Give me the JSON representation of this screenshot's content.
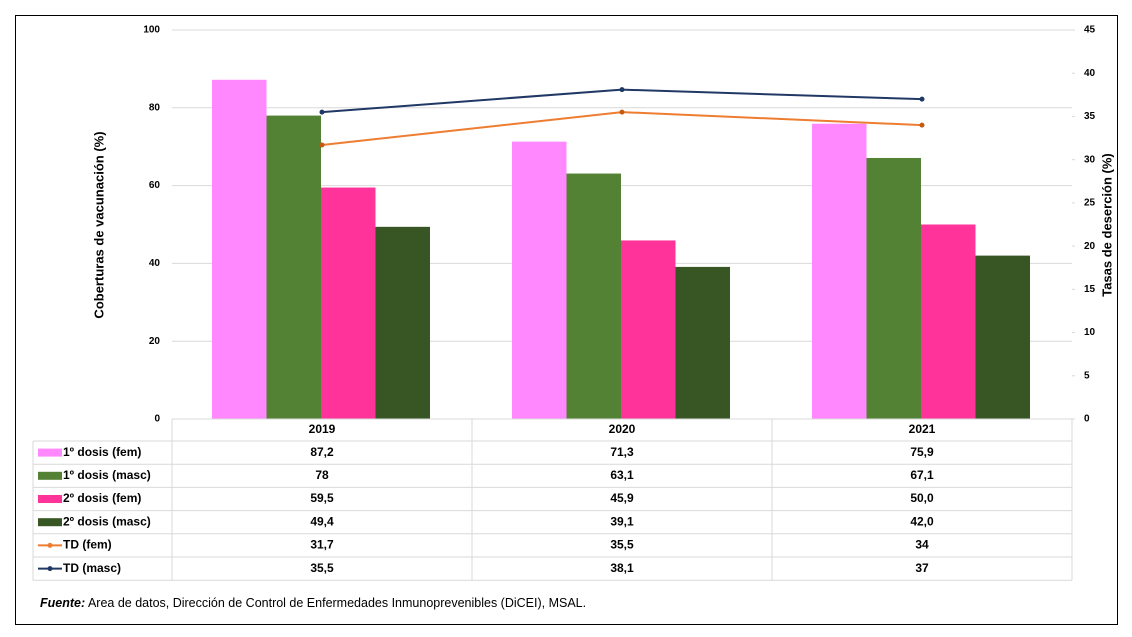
{
  "chart_data": {
    "type": "bar",
    "ylabel": "Coberturas de vacunación (%)",
    "y2label": "Tasas de deserción (%)",
    "categories": [
      "2019",
      "2020",
      "2021"
    ],
    "ylim": [
      0,
      100
    ],
    "yticks": [
      0,
      20,
      40,
      60,
      80,
      100
    ],
    "y2lim": [
      0,
      45
    ],
    "y2ticks": [
      0,
      5,
      10,
      15,
      20,
      25,
      30,
      35,
      40,
      45
    ],
    "grid": true,
    "series": [
      {
        "name": "1º dosis (fem)",
        "type": "bar",
        "color": "#ff88ff",
        "values": [
          87.2,
          71.3,
          75.9
        ],
        "value_labels": [
          "87,2",
          "71,3",
          "75,9"
        ]
      },
      {
        "name": "1º dosis (masc)",
        "type": "bar",
        "color": "#548235",
        "values": [
          78,
          63.1,
          67.1
        ],
        "value_labels": [
          "78",
          "63,1",
          "67,1"
        ]
      },
      {
        "name": "2º dosis (fem)",
        "type": "bar",
        "color": "#ff3399",
        "values": [
          59.5,
          45.9,
          50.0
        ],
        "value_labels": [
          "59,5",
          "45,9",
          "50,0"
        ]
      },
      {
        "name": "2º dosis (masc)",
        "type": "bar",
        "color": "#375623",
        "values": [
          49.4,
          39.1,
          42.0
        ],
        "value_labels": [
          "49,4",
          "39,1",
          "42,0"
        ]
      },
      {
        "name": "TD (fem)",
        "type": "line",
        "axis": "y2",
        "color": "#ed7d31",
        "values": [
          31.7,
          35.5,
          34
        ],
        "value_labels": [
          "31,7",
          "35,5",
          "34"
        ]
      },
      {
        "name": "TD (masc)",
        "type": "line",
        "axis": "y2",
        "color": "#203864",
        "values": [
          35.5,
          38.1,
          37
        ],
        "value_labels": [
          "35,5",
          "38,1",
          "37"
        ]
      }
    ],
    "source_label": "Fuente:",
    "source": "Area de datos, Dirección de Control de Enfermedades Inmunoprevenibles (DiCEI), MSAL."
  }
}
